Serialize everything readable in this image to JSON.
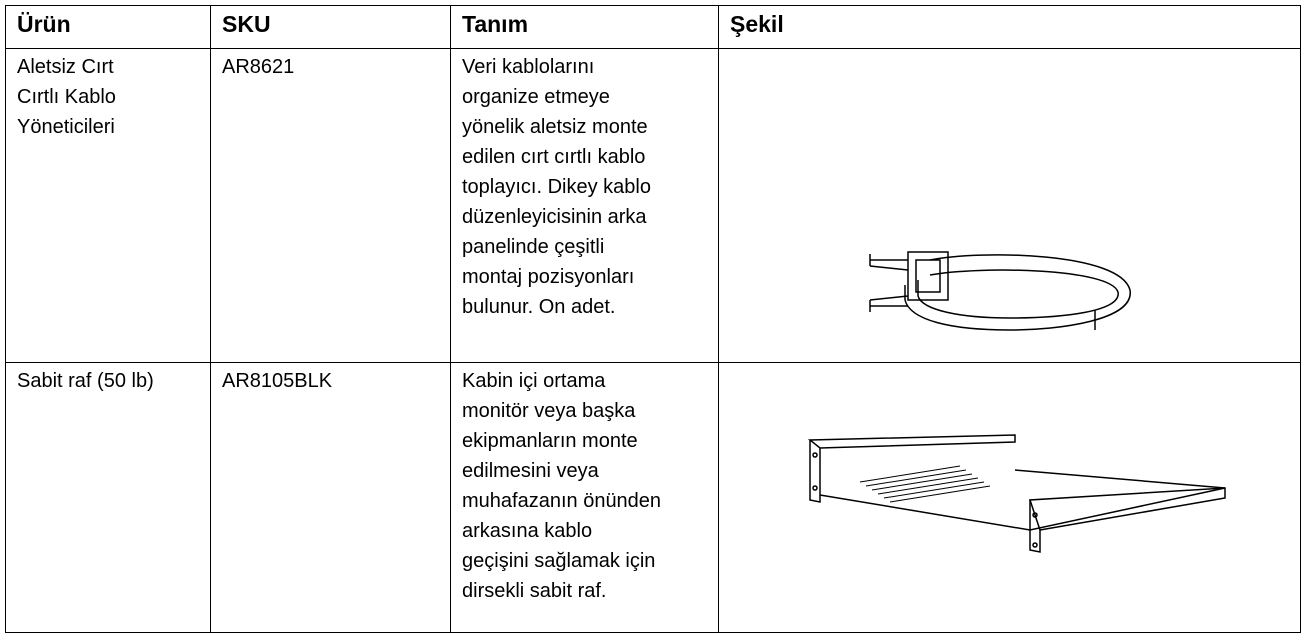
{
  "table": {
    "header": [
      "Ürün",
      "SKU",
      "Tanım",
      "Şekil"
    ],
    "rows": [
      {
        "product": [
          "Aletsiz Cırt",
          "Cırtlı Kablo",
          "Yöneticileri"
        ],
        "sku": "AR8621",
        "description": [
          "Veri kablolarını",
          "organize etmeye",
          "yönelik aletsiz monte",
          "edilen cırt cırtlı kablo",
          "toplayıcı. Dikey kablo",
          "düzenleyicisinin arka",
          "panelinde çeşitli",
          "montaj pozisyonları",
          "bulunur. On adet."
        ]
      },
      {
        "product": [
          "Sabit raf (50 lb)"
        ],
        "sku": "AR8105BLK",
        "description": [
          "Kabin içi ortama",
          "monitör veya başka",
          "ekipmanların monte",
          "edilmesini veya",
          "muhafazanın önünden",
          "arkasına kablo",
          "geçişini sağlamak için",
          "dirsekli sabit raf."
        ]
      }
    ]
  }
}
